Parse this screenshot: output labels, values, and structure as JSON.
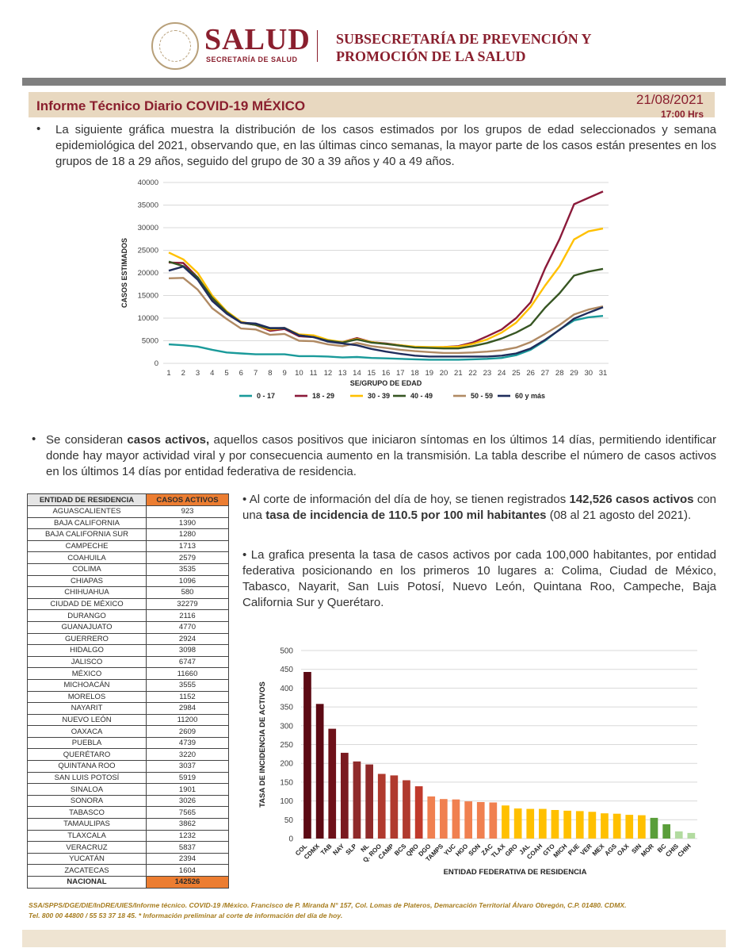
{
  "header": {
    "logo_text": "SALUD",
    "logo_subtext": "SECRETARÍA DE SALUD",
    "seal_text": "ESTADOS UNIDOS MEXICANOS",
    "department_line1": "SUBSECRETARÍA DE PREVENCIÓN Y",
    "department_line2": "PROMOCIÓN DE LA SALUD"
  },
  "report": {
    "title": "Informe Técnico Diario COVID-19 MÉXICO",
    "date": "21/08/2021",
    "time": "17:00 Hrs"
  },
  "paragraphs": {
    "intro": "La siguiente gráfica muestra la distribución de los casos estimados por los grupos de edad seleccionados y semana epidemiológica del 2021, observando que, en las últimas cinco semanas, la mayor parte de los casos están presentes en los grupos de 18 a 29 años, seguido del grupo de 30 a 39 años y 40 a 49 años.",
    "active_pre": "Se consideran ",
    "active_bold": "casos activos,",
    "active_post": " aquellos casos positivos que iniciaron síntomas en los últimos 14 días, permitiendo identificar donde hay mayor actividad viral y por consecuencia aumento en la transmisión. La tabla describe el número de casos activos en los últimos 14 días por entidad federativa de residencia.",
    "cut_pre": "Al corte de información del día de hoy, se tienen registrados ",
    "cut_bold1": "142,526 casos activos",
    "cut_mid": " con una ",
    "cut_bold2": "tasa de incidencia de 110.5 por 100 mil habitantes",
    "cut_post": " (08 al 21 agosto del 2021).",
    "rate": "La grafica presenta la tasa de casos activos por cada 100,000 habitantes, por entidad federativa posicionando en los primeros 10 lugares a: Colima, Ciudad de México, Tabasco, Nayarit, San Luis Potosí, Nuevo León, Quintana Roo, Campeche, Baja California Sur y Querétaro."
  },
  "table": {
    "headers": [
      "ENTIDAD DE RESIDENCIA",
      "CASOS ACTIVOS"
    ],
    "rows": [
      [
        "AGUASCALIENTES",
        "923"
      ],
      [
        "BAJA CALIFORNIA",
        "1390"
      ],
      [
        "BAJA CALIFORNIA SUR",
        "1280"
      ],
      [
        "CAMPECHE",
        "1713"
      ],
      [
        "COAHUILA",
        "2579"
      ],
      [
        "COLIMA",
        "3535"
      ],
      [
        "CHIAPAS",
        "1096"
      ],
      [
        "CHIHUAHUA",
        "580"
      ],
      [
        "CIUDAD DE MÉXICO",
        "32279"
      ],
      [
        "DURANGO",
        "2116"
      ],
      [
        "GUANAJUATO",
        "4770"
      ],
      [
        "GUERRERO",
        "2924"
      ],
      [
        "HIDALGO",
        "3098"
      ],
      [
        "JALISCO",
        "6747"
      ],
      [
        "MÉXICO",
        "11660"
      ],
      [
        "MICHOACÁN",
        "3555"
      ],
      [
        "MORELOS",
        "1152"
      ],
      [
        "NAYARIT",
        "2984"
      ],
      [
        "NUEVO LEÓN",
        "11200"
      ],
      [
        "OAXACA",
        "2609"
      ],
      [
        "PUEBLA",
        "4739"
      ],
      [
        "QUERÉTARO",
        "3220"
      ],
      [
        "QUINTANA ROO",
        "3037"
      ],
      [
        "SAN LUIS POTOSÍ",
        "5919"
      ],
      [
        "SINALOA",
        "1901"
      ],
      [
        "SONORA",
        "3026"
      ],
      [
        "TABASCO",
        "7565"
      ],
      [
        "TAMAULIPAS",
        "3862"
      ],
      [
        "TLAXCALA",
        "1232"
      ],
      [
        "VERACRUZ",
        "5837"
      ],
      [
        "YUCATÁN",
        "2394"
      ],
      [
        "ZACATECAS",
        "1604"
      ]
    ],
    "total_label": "NACIONAL",
    "total_value": "142526"
  },
  "footer": {
    "line1": "SSA/SPPS/DGE/DIE/InDRE/UIES/Informe técnico. COVID-19 /México. Francisco de P. Miranda N° 157, Col. Lomas de Plateros, Demarcación Territorial Álvaro Obregón, C.P. 01480. CDMX.",
    "line2": "Tel. 800 00 44800 / 55 53 37 18 45. * Información preliminar al corte de información del día de hoy."
  },
  "chart_data": [
    {
      "type": "line",
      "title": "",
      "xlabel": "SE/GRUPO DE EDAD",
      "ylabel": "CASOS ESTIMADOS",
      "ylim": [
        0,
        40000
      ],
      "yticks": [
        0,
        5000,
        10000,
        15000,
        20000,
        25000,
        30000,
        35000,
        40000
      ],
      "x": [
        1,
        2,
        3,
        4,
        5,
        6,
        7,
        8,
        9,
        10,
        11,
        12,
        13,
        14,
        15,
        16,
        17,
        18,
        19,
        20,
        21,
        22,
        23,
        24,
        25,
        26,
        27,
        28,
        29,
        30,
        31
      ],
      "grid": true,
      "legend_position": "bottom",
      "series": [
        {
          "name": "0 - 17",
          "color": "#1a9a9a",
          "values": [
            4200,
            4000,
            3700,
            3000,
            2400,
            2200,
            2000,
            2000,
            2000,
            1600,
            1600,
            1500,
            1300,
            1400,
            1200,
            1100,
            1000,
            900,
            800,
            800,
            800,
            900,
            1000,
            1200,
            1800,
            3000,
            5000,
            7500,
            9500,
            10200,
            10500
          ]
        },
        {
          "name": "18 - 29",
          "color": "#8b1a3a",
          "values": [
            22300,
            22200,
            19000,
            14000,
            11000,
            9000,
            8500,
            7200,
            7600,
            6000,
            5800,
            5000,
            4700,
            5600,
            4700,
            4400,
            4000,
            3600,
            3500,
            3600,
            3800,
            4600,
            6000,
            7500,
            10000,
            13500,
            21000,
            27500,
            35200,
            36600,
            38000
          ]
        },
        {
          "name": "30 - 39",
          "color": "#ffc000",
          "values": [
            24500,
            23000,
            20000,
            15000,
            11500,
            9200,
            8500,
            7500,
            7800,
            6400,
            6200,
            5200,
            4700,
            5400,
            4700,
            4300,
            4000,
            3700,
            3600,
            3600,
            3700,
            4300,
            5300,
            6800,
            9000,
            12500,
            17200,
            21500,
            27400,
            29200,
            29800
          ]
        },
        {
          "name": "40 - 49",
          "color": "#375623",
          "values": [
            22500,
            21500,
            19000,
            14500,
            11300,
            9000,
            8500,
            7700,
            7800,
            6200,
            5800,
            5000,
            4600,
            5300,
            4600,
            4300,
            3900,
            3500,
            3400,
            3300,
            3300,
            3800,
            4500,
            5500,
            6800,
            8500,
            12300,
            15500,
            19400,
            20300,
            20900
          ]
        },
        {
          "name": "50 - 59",
          "color": "#b08a63",
          "values": [
            18800,
            18900,
            16300,
            12200,
            9800,
            7700,
            7500,
            6300,
            6500,
            5000,
            4900,
            4200,
            3800,
            4500,
            3800,
            3400,
            3000,
            2700,
            2500,
            2300,
            2300,
            2400,
            2600,
            2900,
            3500,
            4700,
            6500,
            8500,
            10800,
            11900,
            12600
          ]
        },
        {
          "name": "60 y más",
          "color": "#1f2d5c",
          "values": [
            20500,
            21400,
            18500,
            13800,
            11000,
            9000,
            8800,
            7800,
            7800,
            6200,
            5800,
            4800,
            4400,
            4000,
            3200,
            2600,
            2100,
            1700,
            1500,
            1500,
            1500,
            1500,
            1500,
            1700,
            2200,
            3300,
            5200,
            7400,
            9900,
            11200,
            12400
          ]
        }
      ]
    },
    {
      "type": "bar",
      "title": "",
      "xlabel": "ENTIDAD FEDERATIVA DE RESIDENCIA",
      "ylabel": "TASA DE INCIDENCIA DE ACTIVOS",
      "ylim": [
        0,
        500
      ],
      "yticks": [
        0,
        50,
        100,
        150,
        200,
        250,
        300,
        350,
        400,
        450,
        500
      ],
      "grid": true,
      "categories": [
        "COL",
        "CDMX",
        "TAB",
        "NAY",
        "SLP",
        "NL",
        "Q. ROO",
        "CAMP",
        "BCS",
        "QRO",
        "DGO",
        "TAMPS",
        "YUC",
        "HGO",
        "SON",
        "ZAC",
        "TLAX",
        "GRO",
        "JAL",
        "COAH",
        "GTO",
        "MICH",
        "PUE",
        "VER",
        "MEX",
        "AGS",
        "OAX",
        "SIN",
        "MOR",
        "BC",
        "CHIS",
        "CHIH"
      ],
      "values": [
        443,
        358,
        292,
        228,
        205,
        197,
        172,
        168,
        155,
        139,
        112,
        105,
        104,
        99,
        97,
        96,
        88,
        80,
        79,
        79,
        76,
        74,
        73,
        71,
        67,
        66,
        63,
        62,
        55,
        38,
        19,
        15
      ],
      "colors": [
        "#5c0a14",
        "#5c0a14",
        "#6e1119",
        "#7a1a20",
        "#8f2a2a",
        "#8f2a2a",
        "#b03a2e",
        "#b03a2e",
        "#b03a2e",
        "#c0392b",
        "#f08050",
        "#f08050",
        "#f08050",
        "#f08050",
        "#f08050",
        "#f08050",
        "#ffc000",
        "#ffc000",
        "#ffc000",
        "#ffc000",
        "#ffc000",
        "#ffc000",
        "#ffc000",
        "#ffc000",
        "#ffc000",
        "#ffc000",
        "#ffc000",
        "#ffc000",
        "#5a9e3a",
        "#5a9e3a",
        "#b2dba0",
        "#b2dba0"
      ]
    }
  ]
}
